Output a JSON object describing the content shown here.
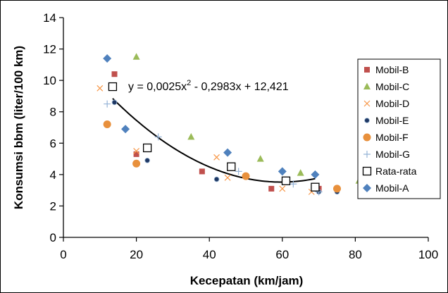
{
  "chart_data": {
    "type": "scatter",
    "xlabel": "Kecepatan (km/jam)",
    "ylabel": "Konsumsi bbm (liter/100 km)",
    "xlim": [
      0,
      100
    ],
    "ylim": [
      0,
      14
    ],
    "x_ticks": [
      0,
      20,
      40,
      60,
      80,
      100
    ],
    "y_ticks": [
      0,
      2,
      4,
      6,
      8,
      10,
      12,
      14
    ],
    "grid": false,
    "legend_position": "right",
    "annotation": {
      "pre": "y = 0,0025x",
      "sup": "2",
      "post": " - 0,2983x + 12,421"
    },
    "trendline": {
      "type": "polynomial",
      "coefficients": [
        0.0025,
        -0.2983,
        12.421
      ],
      "x_range": [
        13.5,
        69
      ],
      "color": "#000000"
    },
    "series": [
      {
        "name": "Mobil-B",
        "marker": "square",
        "color": "#C0504D",
        "points": [
          [
            14,
            10.4
          ],
          [
            20,
            5.3
          ],
          [
            38,
            4.2
          ],
          [
            57,
            3.1
          ],
          [
            70,
            3.1
          ]
        ]
      },
      {
        "name": "Mobil-C",
        "marker": "triangle",
        "color": "#9BBB59",
        "points": [
          [
            20,
            11.5
          ],
          [
            35,
            6.4
          ],
          [
            54,
            5.0
          ],
          [
            65,
            4.1
          ],
          [
            81,
            3.6
          ]
        ]
      },
      {
        "name": "Mobil-D",
        "marker": "x",
        "color": "#F79646",
        "points": [
          [
            10,
            9.5
          ],
          [
            20,
            5.5
          ],
          [
            42,
            5.1
          ],
          [
            45,
            3.8
          ],
          [
            60,
            3.1
          ],
          [
            68,
            2.9
          ]
        ]
      },
      {
        "name": "Mobil-E",
        "marker": "circle-small",
        "color": "#1F3864",
        "points": [
          [
            14,
            8.6
          ],
          [
            23,
            4.9
          ],
          [
            42,
            3.7
          ],
          [
            70,
            2.9
          ],
          [
            75,
            2.9
          ]
        ]
      },
      {
        "name": "Mobil-F",
        "marker": "circle",
        "color": "#E8903C",
        "points": [
          [
            12,
            7.2
          ],
          [
            20,
            4.7
          ],
          [
            50,
            3.9
          ],
          [
            69,
            3.2
          ],
          [
            75,
            3.1
          ]
        ]
      },
      {
        "name": "Mobil-G",
        "marker": "plus",
        "color": "#95B3D7",
        "points": [
          [
            12,
            8.5
          ],
          [
            26,
            6.4
          ],
          [
            48,
            4.2
          ],
          [
            63,
            3.4
          ],
          [
            70,
            2.9
          ]
        ]
      },
      {
        "name": "Rata-rata",
        "marker": "open-square",
        "color": "#000000",
        "points": [
          [
            13.5,
            9.6
          ],
          [
            23,
            5.7
          ],
          [
            46,
            4.5
          ],
          [
            61,
            3.6
          ],
          [
            69,
            3.2
          ]
        ]
      },
      {
        "name": "Mobil-A",
        "marker": "diamond",
        "color": "#4F81BD",
        "points": [
          [
            12,
            11.4
          ],
          [
            17,
            6.9
          ],
          [
            45,
            5.4
          ],
          [
            60,
            4.2
          ],
          [
            69,
            4.0
          ]
        ]
      }
    ]
  }
}
